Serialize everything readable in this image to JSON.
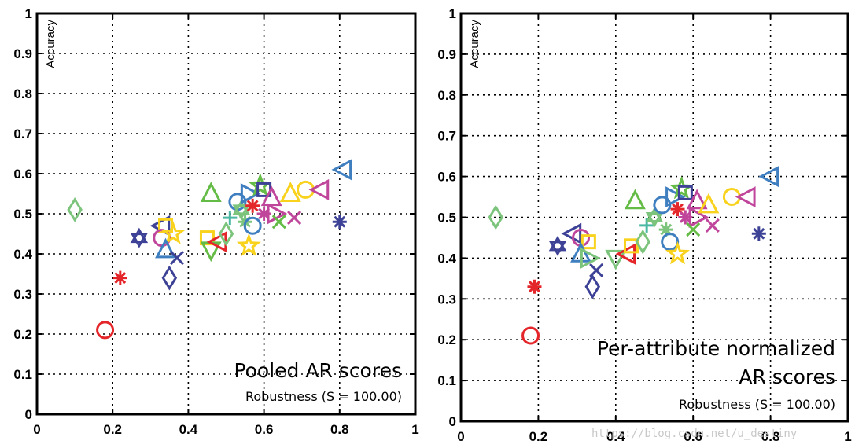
{
  "watermark": "https://blog.csdn.net/u_destiny",
  "colors": {
    "red": "#e4262a",
    "green": "#64bc46",
    "blue": "#3f7fc0",
    "navy": "#3d4296",
    "yellow": "#f8d21c",
    "magenta": "#c0469c",
    "lightgreen": "#7cc47c",
    "teal": "#4cb8a4"
  },
  "chart_data": [
    {
      "type": "scatter",
      "title": "",
      "xlabel": "",
      "ylabel": "Accuracy",
      "xlim": [
        0,
        1
      ],
      "ylim": [
        0,
        1
      ],
      "xticks": [
        "0",
        "0.2",
        "0.4",
        "0.6",
        "0.8",
        "1"
      ],
      "yticks": [
        "0",
        "0.1",
        "0.2",
        "0.3",
        "0.4",
        "0.5",
        "0.6",
        "0.7",
        "0.8",
        "0.9",
        "1"
      ],
      "grid": true,
      "annotation_title": "Pooled AR scores",
      "annotation_subtitle": "Robustness (S = 100.00)",
      "points": [
        {
          "x": 0.18,
          "y": 0.21,
          "marker": "circle",
          "color": "red"
        },
        {
          "x": 0.22,
          "y": 0.34,
          "marker": "asterisk",
          "color": "red"
        },
        {
          "x": 0.1,
          "y": 0.51,
          "marker": "diamond",
          "color": "lightgreen"
        },
        {
          "x": 0.27,
          "y": 0.44,
          "marker": "hexagram",
          "color": "navy"
        },
        {
          "x": 0.33,
          "y": 0.47,
          "marker": "triangle-left",
          "color": "navy"
        },
        {
          "x": 0.34,
          "y": 0.47,
          "marker": "square",
          "color": "yellow"
        },
        {
          "x": 0.33,
          "y": 0.44,
          "marker": "circle",
          "color": "magenta"
        },
        {
          "x": 0.36,
          "y": 0.45,
          "marker": "star",
          "color": "yellow"
        },
        {
          "x": 0.34,
          "y": 0.41,
          "marker": "triangle-up",
          "color": "blue"
        },
        {
          "x": 0.37,
          "y": 0.39,
          "marker": "x",
          "color": "navy"
        },
        {
          "x": 0.35,
          "y": 0.34,
          "marker": "diamond",
          "color": "navy"
        },
        {
          "x": 0.46,
          "y": 0.55,
          "marker": "triangle-up",
          "color": "green"
        },
        {
          "x": 0.45,
          "y": 0.44,
          "marker": "square",
          "color": "yellow"
        },
        {
          "x": 0.46,
          "y": 0.41,
          "marker": "triangle-down",
          "color": "green"
        },
        {
          "x": 0.48,
          "y": 0.43,
          "marker": "triangle-left",
          "color": "red"
        },
        {
          "x": 0.5,
          "y": 0.45,
          "marker": "diamond",
          "color": "lightgreen"
        },
        {
          "x": 0.51,
          "y": 0.49,
          "marker": "plus",
          "color": "teal"
        },
        {
          "x": 0.53,
          "y": 0.53,
          "marker": "circle",
          "color": "blue"
        },
        {
          "x": 0.54,
          "y": 0.51,
          "marker": "hexagram",
          "color": "lightgreen"
        },
        {
          "x": 0.55,
          "y": 0.48,
          "marker": "asterisk",
          "color": "lightgreen"
        },
        {
          "x": 0.56,
          "y": 0.55,
          "marker": "triangle-right",
          "color": "blue"
        },
        {
          "x": 0.57,
          "y": 0.52,
          "marker": "asterisk",
          "color": "red"
        },
        {
          "x": 0.57,
          "y": 0.47,
          "marker": "circle",
          "color": "blue"
        },
        {
          "x": 0.56,
          "y": 0.42,
          "marker": "star",
          "color": "yellow"
        },
        {
          "x": 0.59,
          "y": 0.57,
          "marker": "star",
          "color": "green"
        },
        {
          "x": 0.6,
          "y": 0.56,
          "marker": "square",
          "color": "navy"
        },
        {
          "x": 0.6,
          "y": 0.5,
          "marker": "asterisk",
          "color": "magenta"
        },
        {
          "x": 0.62,
          "y": 0.54,
          "marker": "triangle-up",
          "color": "magenta"
        },
        {
          "x": 0.63,
          "y": 0.5,
          "marker": "triangle-right",
          "color": "magenta"
        },
        {
          "x": 0.64,
          "y": 0.48,
          "marker": "x",
          "color": "green"
        },
        {
          "x": 0.67,
          "y": 0.55,
          "marker": "triangle-up",
          "color": "yellow"
        },
        {
          "x": 0.68,
          "y": 0.49,
          "marker": "x",
          "color": "magenta"
        },
        {
          "x": 0.71,
          "y": 0.56,
          "marker": "circle",
          "color": "yellow"
        },
        {
          "x": 0.75,
          "y": 0.56,
          "marker": "triangle-left",
          "color": "magenta"
        },
        {
          "x": 0.8,
          "y": 0.48,
          "marker": "asterisk",
          "color": "navy"
        },
        {
          "x": 0.81,
          "y": 0.61,
          "marker": "triangle-left",
          "color": "blue"
        }
      ]
    },
    {
      "type": "scatter",
      "title": "",
      "xlabel": "",
      "ylabel": "Accuracy",
      "xlim": [
        0,
        1
      ],
      "ylim": [
        0,
        1
      ],
      "xticks": [
        "0",
        "0.2",
        "0.4",
        "0.6",
        "0.8",
        "1"
      ],
      "yticks": [
        "0",
        "0.1",
        "0.2",
        "0.3",
        "0.4",
        "0.5",
        "0.6",
        "0.7",
        "0.8",
        "0.9",
        "1"
      ],
      "grid": true,
      "annotation_title": [
        "Per-attribute normalized",
        "AR scores"
      ],
      "annotation_subtitle": "Robustness (S = 100.00)",
      "points": [
        {
          "x": 0.18,
          "y": 0.21,
          "marker": "circle",
          "color": "red"
        },
        {
          "x": 0.19,
          "y": 0.33,
          "marker": "asterisk",
          "color": "red"
        },
        {
          "x": 0.09,
          "y": 0.5,
          "marker": "diamond",
          "color": "lightgreen"
        },
        {
          "x": 0.25,
          "y": 0.43,
          "marker": "hexagram",
          "color": "navy"
        },
        {
          "x": 0.29,
          "y": 0.46,
          "marker": "triangle-left",
          "color": "navy"
        },
        {
          "x": 0.31,
          "y": 0.45,
          "marker": "circle",
          "color": "magenta"
        },
        {
          "x": 0.33,
          "y": 0.44,
          "marker": "square",
          "color": "yellow"
        },
        {
          "x": 0.31,
          "y": 0.41,
          "marker": "triangle-up",
          "color": "blue"
        },
        {
          "x": 0.33,
          "y": 0.4,
          "marker": "triangle-right",
          "color": "lightgreen"
        },
        {
          "x": 0.35,
          "y": 0.37,
          "marker": "x",
          "color": "navy"
        },
        {
          "x": 0.34,
          "y": 0.33,
          "marker": "diamond",
          "color": "navy"
        },
        {
          "x": 0.4,
          "y": 0.4,
          "marker": "triangle-down",
          "color": "lightgreen"
        },
        {
          "x": 0.43,
          "y": 0.41,
          "marker": "triangle-left",
          "color": "red"
        },
        {
          "x": 0.45,
          "y": 0.54,
          "marker": "triangle-up",
          "color": "green"
        },
        {
          "x": 0.44,
          "y": 0.43,
          "marker": "square",
          "color": "yellow"
        },
        {
          "x": 0.47,
          "y": 0.44,
          "marker": "diamond",
          "color": "lightgreen"
        },
        {
          "x": 0.48,
          "y": 0.48,
          "marker": "plus",
          "color": "teal"
        },
        {
          "x": 0.5,
          "y": 0.5,
          "marker": "hexagram",
          "color": "lightgreen"
        },
        {
          "x": 0.52,
          "y": 0.53,
          "marker": "circle",
          "color": "blue"
        },
        {
          "x": 0.53,
          "y": 0.47,
          "marker": "asterisk",
          "color": "lightgreen"
        },
        {
          "x": 0.55,
          "y": 0.55,
          "marker": "triangle-right",
          "color": "blue"
        },
        {
          "x": 0.56,
          "y": 0.52,
          "marker": "asterisk",
          "color": "red"
        },
        {
          "x": 0.54,
          "y": 0.44,
          "marker": "circle",
          "color": "blue"
        },
        {
          "x": 0.56,
          "y": 0.41,
          "marker": "star",
          "color": "yellow"
        },
        {
          "x": 0.57,
          "y": 0.57,
          "marker": "star",
          "color": "green"
        },
        {
          "x": 0.58,
          "y": 0.56,
          "marker": "square",
          "color": "navy"
        },
        {
          "x": 0.58,
          "y": 0.5,
          "marker": "asterisk",
          "color": "magenta"
        },
        {
          "x": 0.61,
          "y": 0.54,
          "marker": "triangle-up",
          "color": "magenta"
        },
        {
          "x": 0.61,
          "y": 0.5,
          "marker": "triangle-right",
          "color": "magenta"
        },
        {
          "x": 0.6,
          "y": 0.47,
          "marker": "x",
          "color": "green"
        },
        {
          "x": 0.64,
          "y": 0.53,
          "marker": "triangle-up",
          "color": "yellow"
        },
        {
          "x": 0.65,
          "y": 0.48,
          "marker": "x",
          "color": "magenta"
        },
        {
          "x": 0.7,
          "y": 0.55,
          "marker": "circle",
          "color": "yellow"
        },
        {
          "x": 0.74,
          "y": 0.55,
          "marker": "triangle-left",
          "color": "magenta"
        },
        {
          "x": 0.77,
          "y": 0.46,
          "marker": "asterisk",
          "color": "navy"
        },
        {
          "x": 0.8,
          "y": 0.6,
          "marker": "triangle-left",
          "color": "blue"
        }
      ]
    }
  ]
}
